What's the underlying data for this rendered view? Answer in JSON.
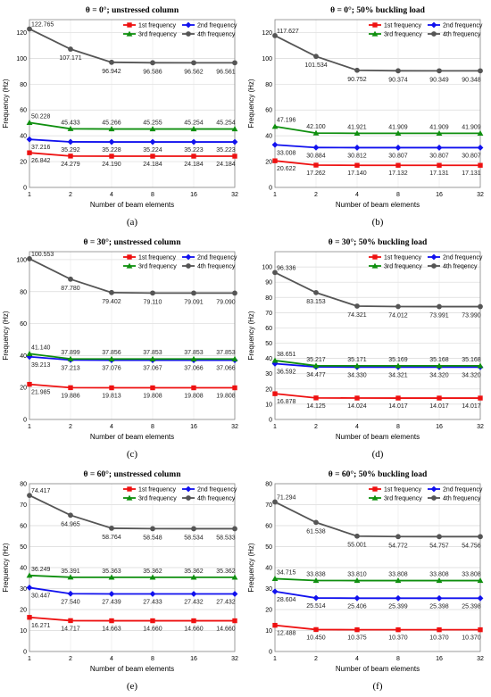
{
  "figure": {
    "x_axis_label": "Number of beam elements",
    "y_axis_label": "Frequency (Hz)"
  },
  "chart_data": [
    {
      "caption": "(a)",
      "title": "θ = 0°; unstressed column",
      "type": "line",
      "x": [
        1,
        2,
        4,
        8,
        16,
        32
      ],
      "xlabel": "Number of beam elements",
      "ylabel": "Frequency (Hz)",
      "ylim": [
        0,
        130
      ],
      "yticks": [
        0,
        20,
        40,
        60,
        80,
        100,
        120
      ],
      "legend_position": "top-right",
      "series": [
        {
          "name": "1st frequency",
          "color": "#ee1111",
          "marker": "square",
          "values": [
            26.842,
            24.279,
            24.19,
            24.184,
            24.184,
            24.184
          ]
        },
        {
          "name": "2nd frequency",
          "color": "#1111ee",
          "marker": "diamond",
          "values": [
            37.216,
            35.292,
            35.228,
            35.224,
            35.223,
            35.223
          ]
        },
        {
          "name": "3rd frequency",
          "color": "#0f8f0f",
          "marker": "triangle",
          "values": [
            50.228,
            45.433,
            45.266,
            45.255,
            45.254,
            45.254
          ]
        },
        {
          "name": "4th frequency",
          "color": "#555555",
          "marker": "circle",
          "values": [
            122.765,
            107.171,
            96.942,
            96.586,
            96.562,
            96.561
          ]
        }
      ],
      "labels": [
        [
          "26.842",
          "24.279",
          "24.190",
          "24.184",
          "24.184",
          "24.184"
        ],
        [
          "37.216",
          "35.292",
          "35.228",
          "35.224",
          "35.223",
          "35.223"
        ],
        [
          "50.228",
          "45.433",
          "45.266",
          "45.255",
          "45.254",
          "45.254"
        ],
        [
          "122.765",
          "107.171",
          "96.942",
          "96.586",
          "96.562",
          "96.561"
        ]
      ]
    },
    {
      "caption": "(b)",
      "title": "θ = 0°; 50% buckling load",
      "type": "line",
      "x": [
        1,
        2,
        4,
        8,
        16,
        32
      ],
      "xlabel": "Number of beam elements",
      "ylabel": "Frequency (Hz)",
      "ylim": [
        0,
        130
      ],
      "yticks": [
        0,
        20,
        40,
        60,
        80,
        100,
        120
      ],
      "legend_position": "top-right",
      "series": [
        {
          "name": "1st frequency",
          "color": "#ee1111",
          "marker": "square",
          "values": [
            20.622,
            17.262,
            17.14,
            17.132,
            17.131,
            17.131
          ]
        },
        {
          "name": "2nd frequency",
          "color": "#1111ee",
          "marker": "diamond",
          "values": [
            33.008,
            30.884,
            30.812,
            30.807,
            30.807,
            30.807
          ]
        },
        {
          "name": "3rd frequency",
          "color": "#0f8f0f",
          "marker": "triangle",
          "values": [
            47.196,
            42.1,
            41.921,
            41.909,
            41.909,
            41.909
          ]
        },
        {
          "name": "4th frequency",
          "color": "#555555",
          "marker": "circle",
          "values": [
            117.627,
            101.534,
            90.752,
            90.374,
            90.349,
            90.348
          ]
        }
      ],
      "labels": [
        [
          "20.622",
          "17.262",
          "17.140",
          "17.132",
          "17.131",
          "17.131"
        ],
        [
          "33.008",
          "30.884",
          "30.812",
          "30.807",
          "30.807",
          "30.807"
        ],
        [
          "47.196",
          "42.100",
          "41.921",
          "41.909",
          "41.909",
          "41.909"
        ],
        [
          "117.627",
          "101.534",
          "90.752",
          "90.374",
          "90.349",
          "90.348"
        ]
      ]
    },
    {
      "caption": "(c)",
      "title": "θ = 30°; unstressed column",
      "type": "line",
      "x": [
        1,
        2,
        4,
        8,
        16,
        32
      ],
      "xlabel": "Number of beam elements",
      "ylabel": "Frequency (Hz)",
      "ylim": [
        0,
        105
      ],
      "yticks": [
        0,
        20,
        40,
        60,
        80,
        100
      ],
      "legend_position": "top-right",
      "series": [
        {
          "name": "1st frequency",
          "color": "#ee1111",
          "marker": "square",
          "values": [
            21.985,
            19.886,
            19.813,
            19.808,
            19.808,
            19.808
          ]
        },
        {
          "name": "2nd frequency",
          "color": "#1111ee",
          "marker": "diamond",
          "values": [
            39.213,
            37.213,
            37.076,
            37.067,
            37.066,
            37.066
          ]
        },
        {
          "name": "3rd frequency",
          "color": "#0f8f0f",
          "marker": "triangle",
          "values": [
            41.14,
            37.899,
            37.856,
            37.853,
            37.853,
            37.853
          ]
        },
        {
          "name": "4th frequency",
          "color": "#555555",
          "marker": "circle",
          "values": [
            100.553,
            87.78,
            79.402,
            79.11,
            79.091,
            79.09
          ]
        }
      ],
      "labels": [
        [
          "21.985",
          "19.886",
          "19.813",
          "19.808",
          "19.808",
          "19.808"
        ],
        [
          "39.213",
          "37.213",
          "37.076",
          "37.067",
          "37.066",
          "37.066"
        ],
        [
          "41.140",
          "37.899",
          "37.856",
          "37.853",
          "37.853",
          "37.853"
        ],
        [
          "100.553",
          "87.780",
          "79.402",
          "79.110",
          "79.091",
          "79.090"
        ]
      ]
    },
    {
      "caption": "(d)",
      "title": "θ = 30°; 50% buckling load",
      "type": "line",
      "x": [
        1,
        2,
        4,
        8,
        16,
        32
      ],
      "xlabel": "Number of beam elements",
      "ylabel": "Frequency (Hz)",
      "ylim": [
        0,
        110
      ],
      "yticks": [
        0,
        10,
        20,
        30,
        40,
        50,
        60,
        70,
        80,
        90,
        100
      ],
      "legend_position": "top-right",
      "series": [
        {
          "name": "1st frequency",
          "color": "#ee1111",
          "marker": "square",
          "values": [
            16.878,
            14.125,
            14.024,
            14.017,
            14.017,
            14.017
          ]
        },
        {
          "name": "2nd frequency",
          "color": "#1111ee",
          "marker": "diamond",
          "values": [
            36.592,
            34.477,
            34.33,
            34.321,
            34.32,
            34.32
          ]
        },
        {
          "name": "3rd frequency",
          "color": "#0f8f0f",
          "marker": "triangle",
          "values": [
            38.651,
            35.217,
            35.171,
            35.169,
            35.168,
            35.168
          ]
        },
        {
          "name": "4th freqency",
          "color": "#555555",
          "marker": "circle",
          "values": [
            96.336,
            83.153,
            74.321,
            74.012,
            73.991,
            73.99
          ]
        }
      ],
      "labels": [
        [
          "16.878",
          "14.125",
          "14.024",
          "14.017",
          "14.017",
          "14.017"
        ],
        [
          "36.592",
          "34.477",
          "34.330",
          "34.321",
          "34.320",
          "34.320"
        ],
        [
          "38.651",
          "35.217",
          "35.171",
          "35.169",
          "35.168",
          "35.168"
        ],
        [
          "96.336",
          "83.153",
          "74.321",
          "74.012",
          "73.991",
          "73.990"
        ]
      ]
    },
    {
      "caption": "(e)",
      "title": "θ = 60°; unstressed column",
      "type": "line",
      "x": [
        1,
        2,
        4,
        8,
        16,
        32
      ],
      "xlabel": "Number of beam elements",
      "ylabel": "Frequency (Hz)",
      "ylim": [
        0,
        80
      ],
      "yticks": [
        0,
        10,
        20,
        30,
        40,
        50,
        60,
        70,
        80
      ],
      "legend_position": "top-right",
      "series": [
        {
          "name": "1st frequency",
          "color": "#ee1111",
          "marker": "square",
          "values": [
            16.271,
            14.717,
            14.663,
            14.66,
            14.66,
            14.66
          ]
        },
        {
          "name": "2nd frequency",
          "color": "#1111ee",
          "marker": "diamond",
          "values": [
            30.447,
            27.54,
            27.439,
            27.433,
            27.432,
            27.432
          ]
        },
        {
          "name": "3rd frequency",
          "color": "#0f8f0f",
          "marker": "triangle",
          "values": [
            36.249,
            35.391,
            35.363,
            35.362,
            35.362,
            35.362
          ]
        },
        {
          "name": "4th frequency",
          "color": "#555555",
          "marker": "circle",
          "values": [
            74.417,
            64.965,
            58.764,
            58.548,
            58.534,
            58.533
          ]
        }
      ],
      "labels": [
        [
          "16.271",
          "14.717",
          "14.663",
          "14.660",
          "14.660",
          "14.660"
        ],
        [
          "30.447",
          "27.540",
          "27.439",
          "27.433",
          "27.432",
          "27.432"
        ],
        [
          "36.249",
          "35.391",
          "35.363",
          "35.362",
          "35.362",
          "35.362"
        ],
        [
          "74.417",
          "64.965",
          "58.764",
          "58.548",
          "58.534",
          "58.533"
        ]
      ]
    },
    {
      "caption": "(f)",
      "title": "θ = 60°; 50% buckling load",
      "type": "line",
      "x": [
        1,
        2,
        4,
        8,
        16,
        32
      ],
      "xlabel": "Number of beam elements",
      "ylabel": "Frequency (Hz)",
      "ylim": [
        0,
        80
      ],
      "yticks": [
        0,
        10,
        20,
        30,
        40,
        50,
        60,
        70,
        80
      ],
      "legend_position": "top-right",
      "series": [
        {
          "name": "1st frequency",
          "color": "#ee1111",
          "marker": "square",
          "values": [
            12.488,
            10.45,
            10.375,
            10.37,
            10.37,
            10.37
          ]
        },
        {
          "name": "2nd frequency",
          "color": "#1111ee",
          "marker": "diamond",
          "values": [
            28.604,
            25.514,
            25.406,
            25.399,
            25.398,
            25.398
          ]
        },
        {
          "name": "3rd frequency",
          "color": "#0f8f0f",
          "marker": "triangle",
          "values": [
            34.715,
            33.838,
            33.81,
            33.808,
            33.808,
            33.808
          ]
        },
        {
          "name": "4th frequency",
          "color": "#555555",
          "marker": "circle",
          "values": [
            71.294,
            61.538,
            55.001,
            54.772,
            54.757,
            54.756
          ]
        }
      ],
      "labels": [
        [
          "12.488",
          "10.450",
          "10.375",
          "10.370",
          "10.370",
          "10.370"
        ],
        [
          "28.604",
          "25.514",
          "25.406",
          "25.399",
          "25.398",
          "25.398"
        ],
        [
          "34.715",
          "33.838",
          "33.810",
          "33.808",
          "33.808",
          "33.808"
        ],
        [
          "71.294",
          "61.538",
          "55.001",
          "54.772",
          "54.757",
          "54.756"
        ]
      ]
    }
  ]
}
